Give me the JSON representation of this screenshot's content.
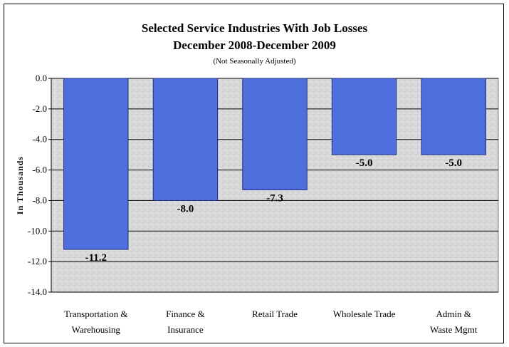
{
  "chart_data": {
    "type": "bar",
    "title": "Selected Service Industries With Job Losses",
    "subtitle": "December 2008-December 2009",
    "note": "(Not Seasonally Adjusted)",
    "ylabel": "In Thousands",
    "xlabel": "",
    "categories": [
      [
        "Transportation &",
        "Warehousing"
      ],
      [
        "Finance &",
        "Insurance"
      ],
      [
        "Retail Trade"
      ],
      [
        "Wholesale Trade"
      ],
      [
        "Admin &",
        "Waste Mgmt"
      ]
    ],
    "values": [
      -11.2,
      -8.0,
      -7.3,
      -5.0,
      -5.0
    ],
    "value_labels": [
      "-11.2",
      "-8.0",
      "-7.3",
      "-5.0",
      "-5.0"
    ],
    "ylim": [
      -14.0,
      0.0
    ],
    "yticks": [
      "0.0",
      "-2.0",
      "-4.0",
      "-6.0",
      "-8.0",
      "-10.0",
      "-12.0",
      "-14.0"
    ],
    "grid": true,
    "bar_color": "#4f6fdd"
  }
}
